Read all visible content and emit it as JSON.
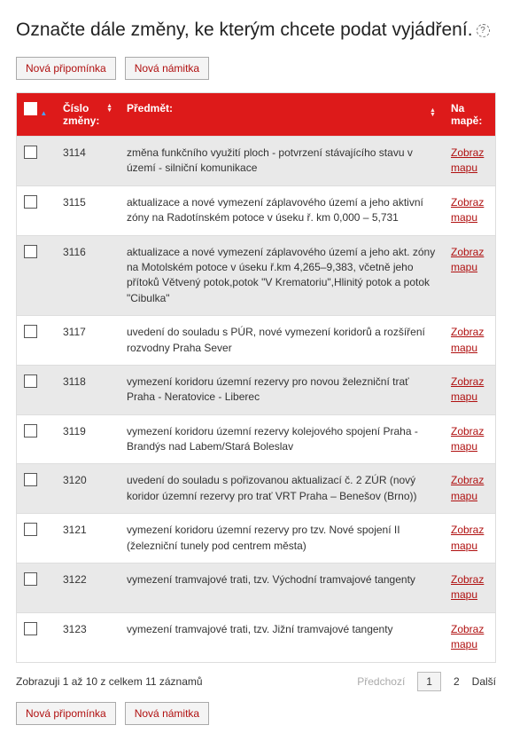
{
  "heading": "Označte dále změny, ke kterým chcete podat vyjádření.",
  "help_glyph": "?",
  "buttons": {
    "new_comment": "Nová připomínka",
    "new_objection": "Nová námitka"
  },
  "table": {
    "columns": {
      "number": "Číslo změny:",
      "subject": "Předmět:",
      "map": "Na mapě:"
    },
    "map_link_label": "Zobraz mapu",
    "rows": [
      {
        "num": "3114",
        "subject": "změna funkčního využití ploch - potvrzení stávajícího stavu v území - silniční komunikace"
      },
      {
        "num": "3115",
        "subject": "aktualizace a nové vymezení záplavového území a jeho aktivní zóny na Radotínském potoce v úseku ř. km 0,000 – 5,731"
      },
      {
        "num": "3116",
        "subject": "aktualizace a nové vymezení záplavového území a jeho akt. zóny na Motolském potoce v úseku ř.km 4,265–9,383, včetně jeho přítoků Větvený potok,potok \"V Krematoriu\",Hlinitý potok a potok \"Cibulka\""
      },
      {
        "num": "3117",
        "subject": "uvedení do souladu s PÚR, nové vymezení koridorů a rozšíření rozvodny Praha Sever"
      },
      {
        "num": "3118",
        "subject": "vymezení koridoru územní rezervy pro novou železniční trať Praha - Neratovice - Liberec"
      },
      {
        "num": "3119",
        "subject": "vymezení koridoru územní rezervy kolejového spojení Praha - Brandýs nad Labem/Stará Boleslav"
      },
      {
        "num": "3120",
        "subject": "uvedení do souladu s pořizovanou aktualizací č. 2 ZÚR (nový koridor územní rezervy pro trať VRT Praha – Benešov (Brno))"
      },
      {
        "num": "3121",
        "subject": "vymezení koridoru územní rezervy pro tzv. Nové spojení II (železniční tunely pod centrem města)"
      },
      {
        "num": "3122",
        "subject": "vymezení tramvajové trati, tzv. Východní tramvajové tangenty"
      },
      {
        "num": "3123",
        "subject": "vymezení tramvajové trati, tzv. Jižní tramvajové tangenty"
      }
    ]
  },
  "footer": {
    "info": "Zobrazuji 1 až 10 z celkem 11 záznamů",
    "prev": "Předchozí",
    "next": "Další",
    "pages": [
      "1",
      "2"
    ],
    "current_page": 0
  },
  "colors": {
    "header_bg": "#dd1a1a",
    "link": "#b01010",
    "row_alt": "#e9e9e9"
  }
}
